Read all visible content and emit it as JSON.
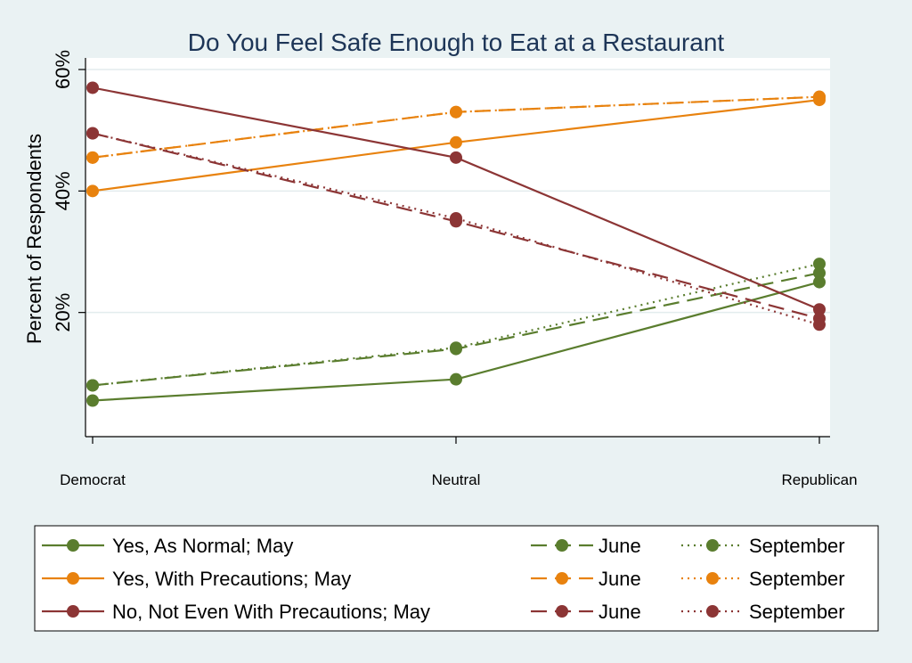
{
  "chart_data": {
    "type": "line",
    "title": "Do You Feel Safe Enough to Eat at a Restaurant",
    "ylabel": "Percent of Respondents",
    "xlabel": "",
    "categories": [
      "Democrat",
      "Neutral",
      "Republican"
    ],
    "ylim": [
      0,
      60
    ],
    "yticks": [
      20,
      40,
      60
    ],
    "ytick_labels": [
      "20%",
      "40%",
      "60%"
    ],
    "grid": true,
    "legend_position": "bottom",
    "colors": {
      "yes_normal": "#5a7d2e",
      "yes_precautions": "#e8820e",
      "no": "#8c3535"
    },
    "series": [
      {
        "name": "Yes, As Normal; May",
        "group": "yes_normal",
        "style": "solid",
        "values": [
          5.5,
          9,
          25
        ]
      },
      {
        "name": "June",
        "group": "yes_normal",
        "style": "dashed",
        "values": [
          8,
          14,
          26.5
        ]
      },
      {
        "name": "September",
        "group": "yes_normal",
        "style": "dotted",
        "values": [
          8,
          14.2,
          28
        ]
      },
      {
        "name": "Yes, With Precautions; May",
        "group": "yes_precautions",
        "style": "solid",
        "values": [
          40,
          48,
          55
        ]
      },
      {
        "name": "June",
        "group": "yes_precautions",
        "style": "dashed",
        "values": [
          45.5,
          53,
          55.5
        ]
      },
      {
        "name": "September",
        "group": "yes_precautions",
        "style": "dotted",
        "values": [
          45.5,
          53,
          55.5
        ]
      },
      {
        "name": "No, Not Even With Precautions; May",
        "group": "no",
        "style": "solid",
        "values": [
          57,
          45.5,
          20.5
        ]
      },
      {
        "name": "June",
        "group": "no",
        "style": "dashed",
        "values": [
          49.5,
          35,
          19
        ]
      },
      {
        "name": "September",
        "group": "no",
        "style": "dotted",
        "values": [
          49.5,
          35.5,
          18
        ]
      }
    ]
  }
}
